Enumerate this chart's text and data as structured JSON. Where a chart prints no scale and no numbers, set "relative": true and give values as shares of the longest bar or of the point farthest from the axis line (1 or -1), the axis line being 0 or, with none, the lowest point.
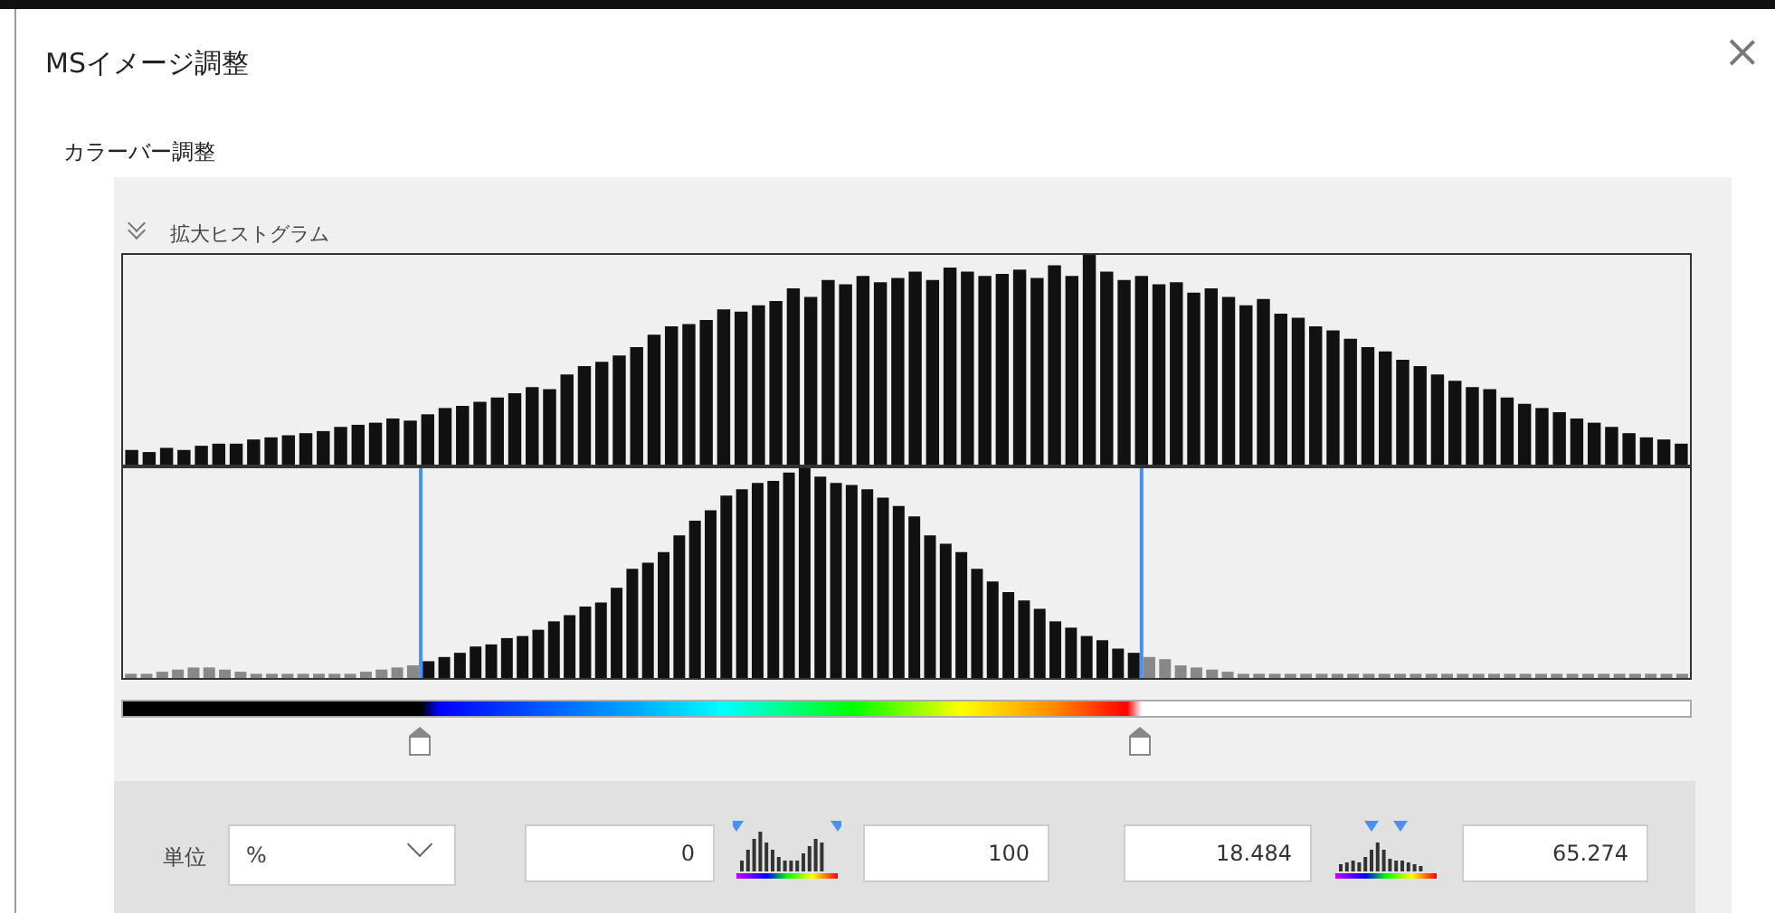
{
  "chart_data": [
    {
      "type": "bar",
      "title": "拡大ヒストグラム",
      "annotations": [
        "MSイメージ調整",
        "カラーバー調整"
      ],
      "relative": true,
      "tick_labels": false,
      "color": "#111111",
      "categories": [
        null,
        null,
        null,
        null,
        null,
        null,
        null,
        null,
        null,
        null,
        null,
        null,
        null,
        null,
        null,
        null,
        null,
        null,
        null,
        null,
        null,
        null,
        null,
        null,
        null,
        null,
        null,
        null,
        null,
        null,
        null,
        null,
        null,
        null,
        null,
        null,
        null,
        null,
        null,
        null,
        null,
        null,
        null,
        null,
        null,
        null,
        null,
        null,
        null,
        null,
        null,
        null,
        null,
        null,
        null,
        null,
        null,
        null,
        null,
        null,
        null,
        null,
        null,
        null,
        null,
        null,
        null,
        null,
        null,
        null,
        null,
        null,
        null,
        null,
        null,
        null,
        null,
        null,
        null,
        null,
        null,
        null,
        null,
        null,
        null,
        null,
        null,
        null,
        null,
        null
      ],
      "values": [
        0.07,
        0.06,
        0.08,
        0.07,
        0.09,
        0.1,
        0.1,
        0.12,
        0.13,
        0.14,
        0.15,
        0.16,
        0.18,
        0.19,
        0.2,
        0.22,
        0.21,
        0.24,
        0.27,
        0.28,
        0.3,
        0.32,
        0.34,
        0.37,
        0.36,
        0.43,
        0.47,
        0.49,
        0.52,
        0.56,
        0.62,
        0.66,
        0.67,
        0.69,
        0.74,
        0.73,
        0.76,
        0.78,
        0.84,
        0.8,
        0.88,
        0.86,
        0.9,
        0.87,
        0.89,
        0.92,
        0.88,
        0.94,
        0.92,
        0.9,
        0.91,
        0.93,
        0.89,
        0.95,
        0.9,
        1.0,
        0.92,
        0.88,
        0.9,
        0.86,
        0.87,
        0.82,
        0.84,
        0.8,
        0.76,
        0.79,
        0.72,
        0.7,
        0.66,
        0.64,
        0.6,
        0.56,
        0.54,
        0.5,
        0.47,
        0.43,
        0.4,
        0.37,
        0.36,
        0.32,
        0.29,
        0.27,
        0.25,
        0.22,
        0.2,
        0.18,
        0.15,
        0.13,
        0.12,
        0.1
      ]
    },
    {
      "type": "bar",
      "relative": true,
      "tick_labels": false,
      "annotations": [
        "単位",
        "%",
        "0",
        "100",
        "18.484",
        "65.274"
      ],
      "categories": [
        null,
        null,
        null,
        null,
        null,
        null,
        null,
        null,
        null,
        null,
        null,
        null,
        null,
        null,
        null,
        null,
        null,
        null,
        null,
        null,
        null,
        null,
        null,
        null,
        null,
        null,
        null,
        null,
        null,
        null,
        null,
        null,
        null,
        null,
        null,
        null,
        null,
        null,
        null,
        null,
        null,
        null,
        null,
        null,
        null,
        null,
        null,
        null,
        null,
        null,
        null,
        null,
        null,
        null,
        null,
        null,
        null,
        null,
        null,
        null,
        null,
        null,
        null,
        null,
        null,
        null,
        null,
        null,
        null,
        null,
        null,
        null,
        null,
        null,
        null,
        null,
        null,
        null,
        null,
        null,
        null,
        null,
        null,
        null,
        null,
        null,
        null,
        null,
        null,
        null,
        null,
        null,
        null,
        null,
        null,
        null,
        null,
        null,
        null,
        null
      ],
      "values": [
        0.02,
        0.02,
        0.03,
        0.04,
        0.05,
        0.05,
        0.04,
        0.03,
        0.02,
        0.02,
        0.02,
        0.02,
        0.02,
        0.02,
        0.02,
        0.03,
        0.04,
        0.05,
        0.06,
        0.08,
        0.1,
        0.12,
        0.15,
        0.16,
        0.19,
        0.2,
        0.23,
        0.27,
        0.3,
        0.34,
        0.36,
        0.43,
        0.52,
        0.55,
        0.6,
        0.68,
        0.75,
        0.8,
        0.87,
        0.9,
        0.93,
        0.94,
        0.98,
        1.0,
        0.96,
        0.93,
        0.92,
        0.9,
        0.86,
        0.82,
        0.77,
        0.68,
        0.64,
        0.6,
        0.52,
        0.46,
        0.41,
        0.37,
        0.33,
        0.27,
        0.24,
        0.2,
        0.18,
        0.14,
        0.12,
        0.1,
        0.09,
        0.06,
        0.05,
        0.04,
        0.03,
        0.02,
        0.02,
        0.02,
        0.02,
        0.02,
        0.02,
        0.02,
        0.02,
        0.02,
        0.02,
        0.02,
        0.02,
        0.02,
        0.02,
        0.02,
        0.02,
        0.02,
        0.02,
        0.02,
        0.02,
        0.02,
        0.02,
        0.02,
        0.02,
        0.02,
        0.02,
        0.02,
        0.02,
        0.02
      ],
      "colors": [
        "#888888",
        "#888888",
        "#888888",
        "#888888",
        "#888888",
        "#888888",
        "#888888",
        "#888888",
        "#888888",
        "#888888",
        "#888888",
        "#888888",
        "#888888",
        "#888888",
        "#888888",
        "#888888",
        "#888888",
        "#888888",
        "#888888",
        "#111111",
        "#111111",
        "#111111",
        "#111111",
        "#111111",
        "#111111",
        "#111111",
        "#111111",
        "#111111",
        "#111111",
        "#111111",
        "#111111",
        "#111111",
        "#111111",
        "#111111",
        "#111111",
        "#111111",
        "#111111",
        "#111111",
        "#111111",
        "#111111",
        "#111111",
        "#111111",
        "#111111",
        "#111111",
        "#111111",
        "#111111",
        "#111111",
        "#111111",
        "#111111",
        "#111111",
        "#111111",
        "#111111",
        "#111111",
        "#111111",
        "#111111",
        "#111111",
        "#111111",
        "#111111",
        "#111111",
        "#111111",
        "#111111",
        "#111111",
        "#111111",
        "#111111",
        "#111111",
        "#888888",
        "#888888",
        "#888888",
        "#888888",
        "#888888",
        "#888888",
        "#888888",
        "#888888",
        "#888888",
        "#888888",
        "#888888",
        "#888888",
        "#888888",
        "#888888",
        "#888888",
        "#888888",
        "#888888",
        "#888888",
        "#888888",
        "#888888",
        "#888888",
        "#888888",
        "#888888",
        "#888888",
        "#888888",
        "#888888",
        "#888888",
        "#888888",
        "#888888",
        "#888888",
        "#888888",
        "#888888",
        "#888888",
        "#888888",
        "#888888"
      ]
    }
  ]
}
